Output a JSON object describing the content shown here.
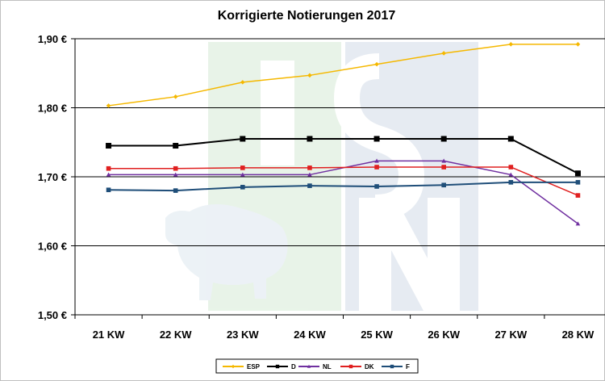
{
  "chart_data": {
    "type": "line",
    "title": "Korrigierte Notierungen 2017",
    "xlabel": "",
    "ylabel": "",
    "categories": [
      "21 KW",
      "22 KW",
      "23 KW",
      "24 KW",
      "25 KW",
      "26 KW",
      "27 KW",
      "28 KW"
    ],
    "ylim": [
      1.5,
      1.9
    ],
    "yticks": [
      1.5,
      1.6,
      1.7,
      1.8,
      1.9
    ],
    "ytick_labels": [
      "1,50 €",
      "1,60 €",
      "1,70 €",
      "1,80 €",
      "1,90 €"
    ],
    "grid": true,
    "legend_position": "bottom",
    "series": [
      {
        "name": "ESP",
        "color": "#f5b800",
        "marker": "diamond",
        "values": [
          1.803,
          1.816,
          1.837,
          1.847,
          1.863,
          1.879,
          1.892,
          1.892
        ]
      },
      {
        "name": "D",
        "color": "#000000",
        "marker": "square",
        "values": [
          1.745,
          1.745,
          1.755,
          1.755,
          1.755,
          1.755,
          1.755,
          1.705
        ]
      },
      {
        "name": "NL",
        "color": "#7030a0",
        "marker": "triangle",
        "values": [
          1.703,
          1.703,
          1.703,
          1.703,
          1.723,
          1.723,
          1.703,
          1.632
        ]
      },
      {
        "name": "DK",
        "color": "#e02020",
        "marker": "square",
        "values": [
          1.712,
          1.712,
          1.713,
          1.713,
          1.714,
          1.714,
          1.714,
          1.673
        ]
      },
      {
        "name": "F",
        "color": "#1f4e79",
        "marker": "square",
        "values": [
          1.681,
          1.68,
          1.685,
          1.687,
          1.686,
          1.688,
          1.692,
          1.692
        ]
      }
    ]
  }
}
